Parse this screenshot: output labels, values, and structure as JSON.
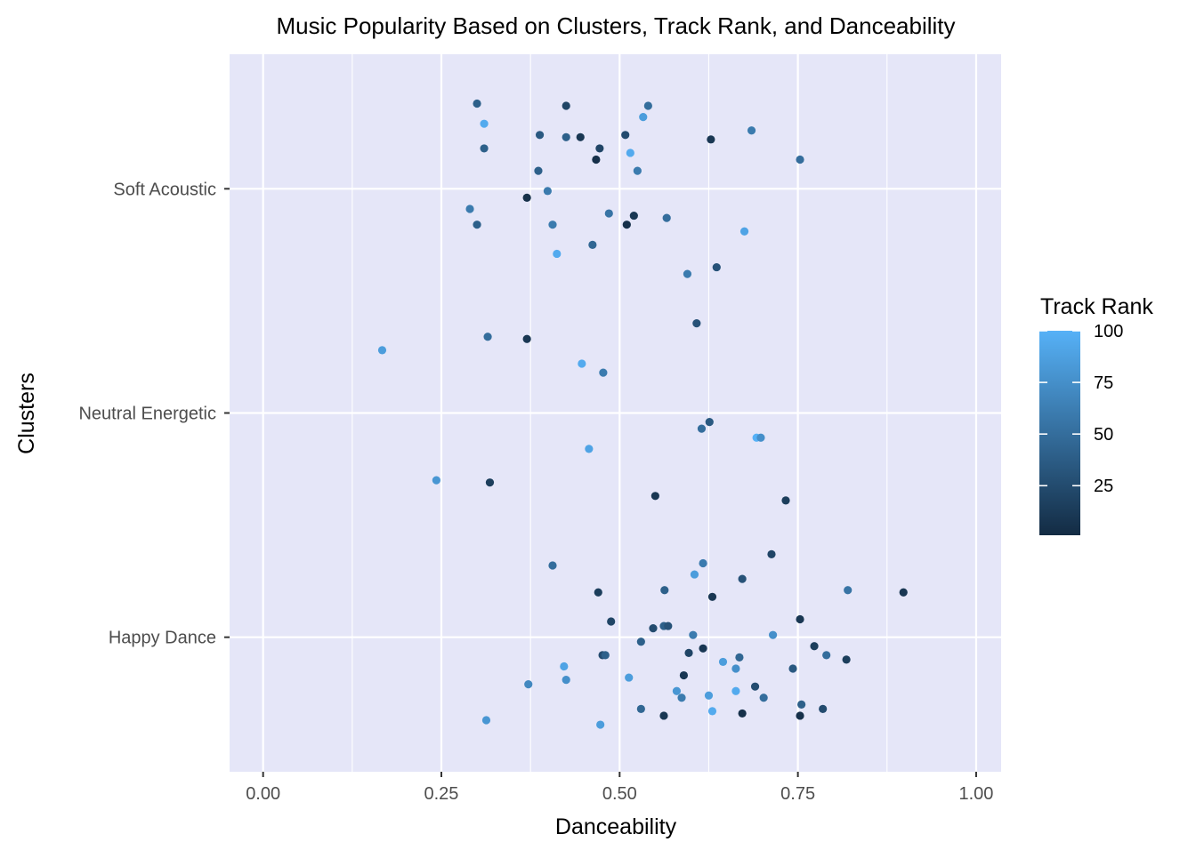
{
  "chart_data": {
    "type": "scatter",
    "title": "Music Popularity Based on Clusters, Track Rank, and Danceability",
    "xlabel": "Danceability",
    "ylabel": "Clusters",
    "xlim": [
      -0.047,
      1.035
    ],
    "x_ticks": [
      0,
      0.25,
      0.5,
      0.75,
      1
    ],
    "x_tick_labels": [
      "0.00",
      "0.25",
      "0.50",
      "0.75",
      "1.00"
    ],
    "categories": [
      "Happy Dance",
      "Neutral Energetic",
      "Soft Acoustic"
    ],
    "grid": true,
    "background": "#E5E6F8",
    "legend": {
      "title": "Track Rank",
      "position": "right",
      "min": 1,
      "max": 100,
      "ticks": [
        25,
        50,
        75,
        100
      ],
      "low_color": "#132B43",
      "high_color": "#56B1F7"
    },
    "points": [
      {
        "x": 0.3,
        "c": "Soft Acoustic",
        "j": 0.38,
        "r": 40
      },
      {
        "x": 0.425,
        "c": "Soft Acoustic",
        "j": 0.37,
        "r": 20
      },
      {
        "x": 0.54,
        "c": "Soft Acoustic",
        "j": 0.37,
        "r": 50
      },
      {
        "x": 0.31,
        "c": "Soft Acoustic",
        "j": 0.29,
        "r": 95
      },
      {
        "x": 0.533,
        "c": "Soft Acoustic",
        "j": 0.32,
        "r": 85
      },
      {
        "x": 0.388,
        "c": "Soft Acoustic",
        "j": 0.24,
        "r": 35
      },
      {
        "x": 0.425,
        "c": "Soft Acoustic",
        "j": 0.23,
        "r": 40
      },
      {
        "x": 0.445,
        "c": "Soft Acoustic",
        "j": 0.23,
        "r": 10
      },
      {
        "x": 0.508,
        "c": "Soft Acoustic",
        "j": 0.24,
        "r": 25
      },
      {
        "x": 0.628,
        "c": "Soft Acoustic",
        "j": 0.22,
        "r": 10
      },
      {
        "x": 0.685,
        "c": "Soft Acoustic",
        "j": 0.26,
        "r": 60
      },
      {
        "x": 0.31,
        "c": "Soft Acoustic",
        "j": 0.18,
        "r": 40
      },
      {
        "x": 0.472,
        "c": "Soft Acoustic",
        "j": 0.18,
        "r": 20
      },
      {
        "x": 0.515,
        "c": "Soft Acoustic",
        "j": 0.16,
        "r": 95
      },
      {
        "x": 0.467,
        "c": "Soft Acoustic",
        "j": 0.13,
        "r": 5
      },
      {
        "x": 0.753,
        "c": "Soft Acoustic",
        "j": 0.13,
        "r": 50
      },
      {
        "x": 0.386,
        "c": "Soft Acoustic",
        "j": 0.08,
        "r": 40
      },
      {
        "x": 0.525,
        "c": "Soft Acoustic",
        "j": 0.08,
        "r": 60
      },
      {
        "x": 0.399,
        "c": "Soft Acoustic",
        "j": -0.01,
        "r": 60
      },
      {
        "x": 0.37,
        "c": "Soft Acoustic",
        "j": -0.04,
        "r": 5
      },
      {
        "x": 0.29,
        "c": "Soft Acoustic",
        "j": -0.09,
        "r": 60
      },
      {
        "x": 0.485,
        "c": "Soft Acoustic",
        "j": -0.11,
        "r": 55
      },
      {
        "x": 0.52,
        "c": "Soft Acoustic",
        "j": -0.12,
        "r": 10
      },
      {
        "x": 0.566,
        "c": "Soft Acoustic",
        "j": -0.13,
        "r": 50
      },
      {
        "x": 0.3,
        "c": "Soft Acoustic",
        "j": -0.16,
        "r": 40
      },
      {
        "x": 0.406,
        "c": "Soft Acoustic",
        "j": -0.16,
        "r": 60
      },
      {
        "x": 0.51,
        "c": "Soft Acoustic",
        "j": -0.16,
        "r": 5
      },
      {
        "x": 0.675,
        "c": "Soft Acoustic",
        "j": -0.19,
        "r": 90
      },
      {
        "x": 0.462,
        "c": "Soft Acoustic",
        "j": -0.25,
        "r": 45
      },
      {
        "x": 0.412,
        "c": "Soft Acoustic",
        "j": -0.29,
        "r": 95
      },
      {
        "x": 0.636,
        "c": "Soft Acoustic",
        "j": -0.35,
        "r": 30
      },
      {
        "x": 0.595,
        "c": "Soft Acoustic",
        "j": -0.38,
        "r": 60
      },
      {
        "x": 0.608,
        "c": "Neutral Energetic",
        "j": 0.4,
        "r": 30
      },
      {
        "x": 0.315,
        "c": "Neutral Energetic",
        "j": 0.34,
        "r": 50
      },
      {
        "x": 0.37,
        "c": "Neutral Energetic",
        "j": 0.33,
        "r": 10
      },
      {
        "x": 0.167,
        "c": "Neutral Energetic",
        "j": 0.28,
        "r": 85
      },
      {
        "x": 0.447,
        "c": "Neutral Energetic",
        "j": 0.22,
        "r": 95
      },
      {
        "x": 0.477,
        "c": "Neutral Energetic",
        "j": 0.18,
        "r": 60
      },
      {
        "x": 0.626,
        "c": "Neutral Energetic",
        "j": -0.04,
        "r": 35
      },
      {
        "x": 0.615,
        "c": "Neutral Energetic",
        "j": -0.07,
        "r": 50
      },
      {
        "x": 0.692,
        "c": "Neutral Energetic",
        "j": -0.11,
        "r": 100
      },
      {
        "x": 0.698,
        "c": "Neutral Energetic",
        "j": -0.11,
        "r": 75
      },
      {
        "x": 0.457,
        "c": "Neutral Energetic",
        "j": -0.16,
        "r": 90
      },
      {
        "x": 0.243,
        "c": "Neutral Energetic",
        "j": -0.3,
        "r": 80
      },
      {
        "x": 0.318,
        "c": "Neutral Energetic",
        "j": -0.31,
        "r": 15
      },
      {
        "x": 0.55,
        "c": "Neutral Energetic",
        "j": -0.37,
        "r": 10
      },
      {
        "x": 0.733,
        "c": "Neutral Energetic",
        "j": -0.39,
        "r": 15
      },
      {
        "x": 0.713,
        "c": "Happy Dance",
        "j": 0.37,
        "r": 20
      },
      {
        "x": 0.406,
        "c": "Happy Dance",
        "j": 0.32,
        "r": 50
      },
      {
        "x": 0.617,
        "c": "Happy Dance",
        "j": 0.33,
        "r": 60
      },
      {
        "x": 0.605,
        "c": "Happy Dance",
        "j": 0.28,
        "r": 85
      },
      {
        "x": 0.672,
        "c": "Happy Dance",
        "j": 0.26,
        "r": 30
      },
      {
        "x": 0.47,
        "c": "Happy Dance",
        "j": 0.2,
        "r": 15
      },
      {
        "x": 0.563,
        "c": "Happy Dance",
        "j": 0.21,
        "r": 40
      },
      {
        "x": 0.63,
        "c": "Happy Dance",
        "j": 0.18,
        "r": 10
      },
      {
        "x": 0.82,
        "c": "Happy Dance",
        "j": 0.21,
        "r": 55
      },
      {
        "x": 0.898,
        "c": "Happy Dance",
        "j": 0.2,
        "r": 10
      },
      {
        "x": 0.488,
        "c": "Happy Dance",
        "j": 0.07,
        "r": 20
      },
      {
        "x": 0.753,
        "c": "Happy Dance",
        "j": 0.08,
        "r": 10
      },
      {
        "x": 0.547,
        "c": "Happy Dance",
        "j": 0.04,
        "r": 25
      },
      {
        "x": 0.562,
        "c": "Happy Dance",
        "j": 0.05,
        "r": 40
      },
      {
        "x": 0.568,
        "c": "Happy Dance",
        "j": 0.05,
        "r": 30
      },
      {
        "x": 0.603,
        "c": "Happy Dance",
        "j": 0.01,
        "r": 60
      },
      {
        "x": 0.715,
        "c": "Happy Dance",
        "j": 0.01,
        "r": 75
      },
      {
        "x": 0.53,
        "c": "Happy Dance",
        "j": -0.02,
        "r": 40
      },
      {
        "x": 0.773,
        "c": "Happy Dance",
        "j": -0.04,
        "r": 15
      },
      {
        "x": 0.617,
        "c": "Happy Dance",
        "j": -0.05,
        "r": 10
      },
      {
        "x": 0.597,
        "c": "Happy Dance",
        "j": -0.07,
        "r": 20
      },
      {
        "x": 0.476,
        "c": "Happy Dance",
        "j": -0.08,
        "r": 25
      },
      {
        "x": 0.48,
        "c": "Happy Dance",
        "j": -0.08,
        "r": 40
      },
      {
        "x": 0.668,
        "c": "Happy Dance",
        "j": -0.09,
        "r": 45
      },
      {
        "x": 0.79,
        "c": "Happy Dance",
        "j": -0.08,
        "r": 50
      },
      {
        "x": 0.818,
        "c": "Happy Dance",
        "j": -0.1,
        "r": 15
      },
      {
        "x": 0.645,
        "c": "Happy Dance",
        "j": -0.11,
        "r": 85
      },
      {
        "x": 0.422,
        "c": "Happy Dance",
        "j": -0.13,
        "r": 90
      },
      {
        "x": 0.663,
        "c": "Happy Dance",
        "j": -0.14,
        "r": 75
      },
      {
        "x": 0.743,
        "c": "Happy Dance",
        "j": -0.14,
        "r": 35
      },
      {
        "x": 0.59,
        "c": "Happy Dance",
        "j": -0.17,
        "r": 10
      },
      {
        "x": 0.425,
        "c": "Happy Dance",
        "j": -0.19,
        "r": 75
      },
      {
        "x": 0.513,
        "c": "Happy Dance",
        "j": -0.18,
        "r": 85
      },
      {
        "x": 0.372,
        "c": "Happy Dance",
        "j": -0.21,
        "r": 70
      },
      {
        "x": 0.69,
        "c": "Happy Dance",
        "j": -0.22,
        "r": 25
      },
      {
        "x": 0.58,
        "c": "Happy Dance",
        "j": -0.24,
        "r": 80
      },
      {
        "x": 0.663,
        "c": "Happy Dance",
        "j": -0.24,
        "r": 95
      },
      {
        "x": 0.587,
        "c": "Happy Dance",
        "j": -0.27,
        "r": 60
      },
      {
        "x": 0.625,
        "c": "Happy Dance",
        "j": -0.26,
        "r": 85
      },
      {
        "x": 0.702,
        "c": "Happy Dance",
        "j": -0.27,
        "r": 50
      },
      {
        "x": 0.755,
        "c": "Happy Dance",
        "j": -0.3,
        "r": 40
      },
      {
        "x": 0.53,
        "c": "Happy Dance",
        "j": -0.32,
        "r": 45
      },
      {
        "x": 0.63,
        "c": "Happy Dance",
        "j": -0.33,
        "r": 95
      },
      {
        "x": 0.785,
        "c": "Happy Dance",
        "j": -0.32,
        "r": 25
      },
      {
        "x": 0.562,
        "c": "Happy Dance",
        "j": -0.35,
        "r": 10
      },
      {
        "x": 0.672,
        "c": "Happy Dance",
        "j": -0.34,
        "r": 5
      },
      {
        "x": 0.753,
        "c": "Happy Dance",
        "j": -0.35,
        "r": 5
      },
      {
        "x": 0.313,
        "c": "Happy Dance",
        "j": -0.37,
        "r": 80
      },
      {
        "x": 0.473,
        "c": "Happy Dance",
        "j": -0.39,
        "r": 85
      }
    ]
  }
}
